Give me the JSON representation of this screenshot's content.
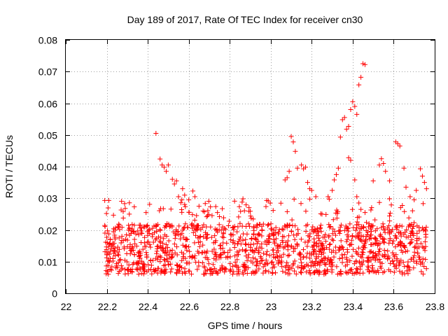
{
  "chart_data": {
    "type": "scatter",
    "title": "Day 189 of 2017, Rate Of TEC Index for receiver cn30",
    "xlabel": "GPS time / hours",
    "ylabel": "ROTI / TECUs",
    "xlim": [
      22,
      23.8
    ],
    "ylim": [
      0,
      0.08
    ],
    "x_ticks": [
      "22",
      "22.2",
      "22.4",
      "22.6",
      "22.8",
      "23",
      "23.2",
      "23.4",
      "23.6",
      "23.8"
    ],
    "y_ticks": [
      "0",
      "0.01",
      "0.02",
      "0.03",
      "0.04",
      "0.05",
      "0.06",
      "0.07",
      "0.08"
    ],
    "grid": true,
    "marker": "+",
    "color": "#ff0000",
    "x_range_of_data": [
      22.19,
      23.76
    ],
    "typical_band": [
      0.006,
      0.022
    ],
    "points": [
      [
        22.19,
        0.0293
      ],
      [
        22.21,
        0.0293
      ],
      [
        22.19,
        0.0214
      ],
      [
        22.27,
        0.0263
      ],
      [
        22.28,
        0.0258
      ],
      [
        22.29,
        0.0268
      ],
      [
        22.31,
        0.025
      ],
      [
        22.44,
        0.0505
      ],
      [
        22.46,
        0.0424
      ],
      [
        22.47,
        0.0405
      ],
      [
        22.48,
        0.0398
      ],
      [
        22.49,
        0.0385
      ],
      [
        22.5,
        0.0405
      ],
      [
        22.52,
        0.036
      ],
      [
        22.53,
        0.0345
      ],
      [
        22.54,
        0.0355
      ],
      [
        22.55,
        0.0305
      ],
      [
        22.57,
        0.033
      ],
      [
        22.58,
        0.031
      ],
      [
        22.6,
        0.0295
      ],
      [
        22.62,
        0.0323
      ],
      [
        22.63,
        0.0305
      ],
      [
        22.65,
        0.0275
      ],
      [
        22.67,
        0.026
      ],
      [
        22.74,
        0.0255
      ],
      [
        22.75,
        0.0242
      ],
      [
        22.9,
        0.0259
      ],
      [
        22.98,
        0.0293
      ],
      [
        23.07,
        0.0358
      ],
      [
        23.08,
        0.0365
      ],
      [
        23.09,
        0.0385
      ],
      [
        23.1,
        0.0495
      ],
      [
        23.11,
        0.0478
      ],
      [
        23.12,
        0.0448
      ],
      [
        23.13,
        0.0395
      ],
      [
        23.15,
        0.0405
      ],
      [
        23.16,
        0.0393
      ],
      [
        23.17,
        0.0398
      ],
      [
        23.18,
        0.035
      ],
      [
        23.19,
        0.033
      ],
      [
        23.2,
        0.0325
      ],
      [
        23.22,
        0.0305
      ],
      [
        23.25,
        0.025
      ],
      [
        23.28,
        0.0305
      ],
      [
        23.3,
        0.0325
      ],
      [
        23.31,
        0.0358
      ],
      [
        23.32,
        0.0375
      ],
      [
        23.33,
        0.0395
      ],
      [
        23.34,
        0.0493
      ],
      [
        23.35,
        0.0548
      ],
      [
        23.36,
        0.0555
      ],
      [
        23.37,
        0.0518
      ],
      [
        23.38,
        0.0527
      ],
      [
        23.39,
        0.058
      ],
      [
        23.4,
        0.0605
      ],
      [
        23.41,
        0.059
      ],
      [
        23.42,
        0.0565
      ],
      [
        23.43,
        0.0658
      ],
      [
        23.44,
        0.0682
      ],
      [
        23.45,
        0.0725
      ],
      [
        23.46,
        0.0722
      ],
      [
        23.38,
        0.0428
      ],
      [
        23.39,
        0.042
      ],
      [
        23.41,
        0.0358
      ],
      [
        23.42,
        0.0305
      ],
      [
        23.43,
        0.0285
      ],
      [
        23.44,
        0.0265
      ],
      [
        23.46,
        0.0255
      ],
      [
        23.5,
        0.0355
      ],
      [
        23.53,
        0.0405
      ],
      [
        23.54,
        0.0425
      ],
      [
        23.55,
        0.041
      ],
      [
        23.56,
        0.0385
      ],
      [
        23.58,
        0.0355
      ],
      [
        23.61,
        0.0478
      ],
      [
        23.62,
        0.0472
      ],
      [
        23.63,
        0.0465
      ],
      [
        23.65,
        0.0395
      ],
      [
        23.66,
        0.0335
      ],
      [
        23.68,
        0.0305
      ],
      [
        23.7,
        0.0295
      ],
      [
        23.71,
        0.0325
      ],
      [
        23.73,
        0.0393
      ],
      [
        23.74,
        0.037
      ],
      [
        23.75,
        0.035
      ],
      [
        23.76,
        0.033
      ]
    ]
  }
}
